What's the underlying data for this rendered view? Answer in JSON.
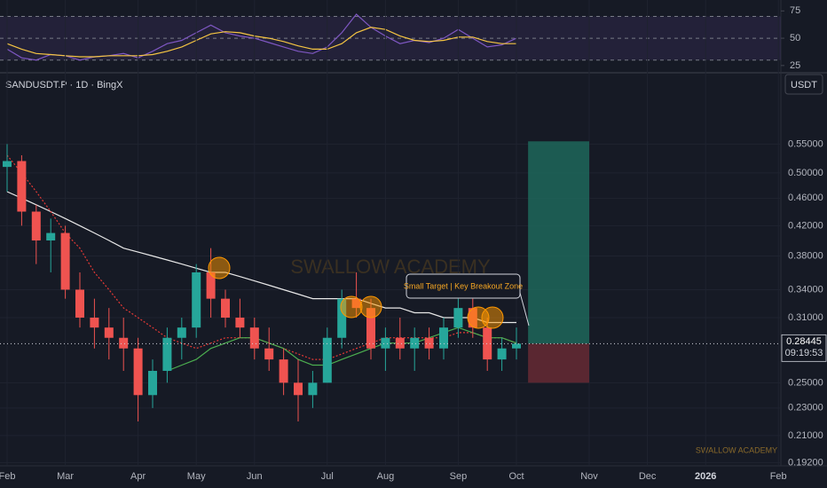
{
  "chart_data": [
    {
      "type": "line",
      "ylim": [
        20,
        85
      ],
      "yticks": [
        25,
        50,
        75
      ],
      "levels": [
        70,
        50,
        30
      ],
      "series": [
        {
          "color": "#7e57c2",
          "values": [
            40,
            32,
            30,
            35,
            34,
            30,
            33,
            34,
            36,
            32,
            38,
            45,
            48,
            55,
            62,
            55,
            52,
            50,
            46,
            42,
            38,
            36,
            42,
            55,
            72,
            60,
            52,
            45,
            48,
            46,
            50,
            58,
            50,
            42,
            44,
            50
          ]
        },
        {
          "color": "#f5c542",
          "values": [
            45,
            40,
            36,
            35,
            34,
            33,
            33,
            34,
            34,
            34,
            35,
            38,
            42,
            48,
            54,
            56,
            55,
            52,
            50,
            47,
            43,
            40,
            40,
            45,
            55,
            60,
            58,
            52,
            48,
            47,
            48,
            51,
            51,
            47,
            45,
            45
          ]
        }
      ]
    },
    {
      "type": "candlestick",
      "symbol": "SANDUSDT.P · 1D · BingX",
      "currency": "USDT",
      "countdown": "09:19:53",
      "annotation": "Small Target | Key Breakout Zone",
      "watermark": "SWALLOW ACADEMY",
      "signature": "SWALLOW ACADEMY",
      "log_scale": true,
      "grid": true,
      "up_color": "#26a69a",
      "down_color": "#ef5350",
      "ylim": [
        0.19,
        0.69
      ],
      "yticks": [
        {
          "value": 0.55,
          "label": "0.55000"
        },
        {
          "value": 0.5,
          "label": "0.50000"
        },
        {
          "value": 0.46,
          "label": "0.46000"
        },
        {
          "value": 0.42,
          "label": "0.42000"
        },
        {
          "value": 0.38,
          "label": "0.38000"
        },
        {
          "value": 0.34,
          "label": "0.34000"
        },
        {
          "value": 0.31,
          "label": "0.31000"
        },
        {
          "value": 0.25,
          "label": "0.25000"
        },
        {
          "value": 0.23,
          "label": "0.23000"
        },
        {
          "value": 0.21,
          "label": "0.21000"
        },
        {
          "value": 0.192,
          "label": "0.19200"
        }
      ],
      "categories": [
        "Feb",
        null,
        null,
        null,
        "Mar",
        null,
        null,
        null,
        null,
        "Apr",
        null,
        null,
        null,
        "May",
        null,
        null,
        null,
        "Jun",
        null,
        null,
        null,
        null,
        "Jul",
        null,
        null,
        null,
        "Aug",
        null,
        null,
        null,
        null,
        "Sep",
        null,
        null,
        null,
        "Oct",
        null,
        null,
        null,
        null,
        "Nov",
        null,
        null,
        null,
        "Dec",
        null,
        null,
        null,
        "2026",
        null,
        null,
        null,
        null,
        "Feb"
      ],
      "open": [
        0.51,
        0.52,
        0.44,
        0.4,
        0.41,
        0.34,
        0.31,
        0.3,
        0.29,
        0.28,
        0.24,
        0.26,
        0.29,
        0.3,
        0.36,
        0.33,
        0.31,
        0.3,
        0.28,
        0.27,
        0.25,
        0.24,
        0.25,
        0.29,
        0.33,
        0.32,
        0.28,
        0.29,
        0.28,
        0.29,
        0.28,
        0.3,
        0.32,
        0.3,
        0.27,
        0.28,
        null,
        null,
        null,
        null,
        null,
        null,
        null,
        null,
        null,
        null,
        null,
        null,
        null,
        null,
        null,
        null,
        null,
        null
      ],
      "high": [
        0.55,
        0.53,
        0.45,
        0.43,
        0.42,
        0.36,
        0.33,
        0.32,
        0.31,
        0.29,
        0.27,
        0.3,
        0.31,
        0.37,
        0.39,
        0.34,
        0.33,
        0.31,
        0.3,
        0.28,
        0.27,
        0.26,
        0.3,
        0.34,
        0.36,
        0.33,
        0.3,
        0.31,
        0.3,
        0.3,
        0.31,
        0.33,
        0.33,
        0.31,
        0.29,
        0.3,
        null,
        null,
        null,
        null,
        null,
        null,
        null,
        null,
        null,
        null,
        null,
        null,
        null,
        null,
        null,
        null,
        null,
        null
      ],
      "low": [
        0.47,
        0.42,
        0.37,
        0.36,
        0.33,
        0.3,
        0.28,
        0.27,
        0.26,
        0.22,
        0.23,
        0.25,
        0.27,
        0.29,
        0.31,
        0.3,
        0.29,
        0.27,
        0.26,
        0.24,
        0.22,
        0.23,
        0.25,
        0.28,
        0.31,
        0.27,
        0.26,
        0.27,
        0.26,
        0.27,
        0.27,
        0.29,
        0.29,
        0.26,
        0.26,
        0.27,
        null,
        null,
        null,
        null,
        null,
        null,
        null,
        null,
        null,
        null,
        null,
        null,
        null,
        null,
        null,
        null,
        null,
        null
      ],
      "close": [
        0.52,
        0.44,
        0.4,
        0.41,
        0.34,
        0.31,
        0.3,
        0.29,
        0.28,
        0.24,
        0.26,
        0.29,
        0.3,
        0.36,
        0.33,
        0.31,
        0.3,
        0.28,
        0.27,
        0.25,
        0.24,
        0.25,
        0.29,
        0.33,
        0.32,
        0.28,
        0.29,
        0.28,
        0.29,
        0.28,
        0.3,
        0.32,
        0.3,
        0.27,
        0.28,
        0.28445,
        null,
        null,
        null,
        null,
        null,
        null,
        null,
        null,
        null,
        null,
        null,
        null,
        null,
        null,
        null,
        null,
        null,
        null
      ],
      "lines": [
        {
          "color": "#e8e8e8",
          "dashed": false,
          "values": [
            0.47,
            0.46,
            0.45,
            0.44,
            0.43,
            0.42,
            0.41,
            0.4,
            0.39,
            0.385,
            0.38,
            0.375,
            0.37,
            0.365,
            0.36,
            0.36,
            0.355,
            0.35,
            0.345,
            0.34,
            0.335,
            0.33,
            0.33,
            0.33,
            0.33,
            0.325,
            0.32,
            0.32,
            0.315,
            0.315,
            0.31,
            0.31,
            0.31,
            0.305,
            0.305,
            0.305,
            null,
            null,
            null,
            null,
            null,
            null,
            null,
            null,
            null,
            null,
            null,
            null,
            null,
            null,
            null,
            null,
            null,
            null
          ]
        },
        {
          "color": "#e53935",
          "dashed": true,
          "values": [
            0.53,
            0.5,
            0.47,
            0.44,
            0.41,
            0.39,
            0.36,
            0.34,
            0.32,
            0.31,
            0.3,
            0.29,
            0.285,
            0.28,
            0.285,
            0.29,
            0.29,
            0.29,
            0.285,
            0.28,
            0.275,
            0.27,
            0.27,
            0.275,
            0.28,
            0.285,
            0.29,
            0.29,
            0.29,
            0.29,
            0.29,
            0.295,
            0.295,
            0.29,
            0.29,
            0.285,
            null,
            null,
            null,
            null,
            null,
            null,
            null,
            null,
            null,
            null,
            null,
            null,
            null,
            null,
            null,
            null,
            null,
            null
          ]
        },
        {
          "color": "#4caf50",
          "dashed": false,
          "values": [
            null,
            null,
            null,
            null,
            null,
            null,
            null,
            null,
            null,
            null,
            null,
            0.26,
            0.265,
            0.27,
            0.28,
            0.285,
            0.29,
            0.29,
            0.285,
            0.28,
            0.27,
            0.265,
            0.265,
            0.27,
            0.275,
            0.28,
            0.285,
            0.285,
            0.285,
            0.29,
            0.295,
            0.3,
            0.295,
            0.29,
            0.29,
            0.285,
            null,
            null,
            null,
            null,
            null,
            null,
            null,
            null,
            null,
            null,
            null,
            null,
            null,
            null,
            null,
            null,
            null,
            null
          ]
        }
      ],
      "position": {
        "target": 0.555,
        "stop": 0.25,
        "target_color": "#1e6b5e",
        "stop_color": "#6b2a35"
      }
    }
  ]
}
